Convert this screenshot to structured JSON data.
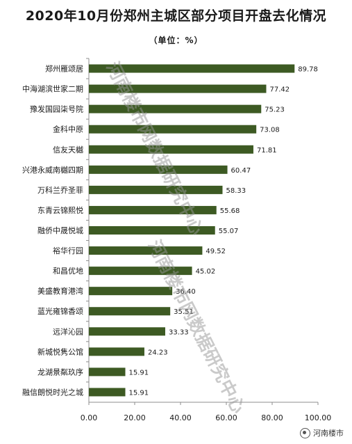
{
  "chart_data": {
    "type": "bar",
    "orientation": "horizontal",
    "title": "2020年10月份郑州主城区部分项目开盘去化情况",
    "subtitle": "（单位：%）",
    "categories": [
      "郑州雁颂居",
      "中海湖滨世家二期",
      "豫发国园柒号院",
      "金科中原",
      "信友天樾",
      "兴港永威南樾四期",
      "万科兰乔圣菲",
      "东青云锦熙悦",
      "融侨中晟悦城",
      "裕华行园",
      "和昌优地",
      "美盛教育港湾",
      "蓝光雍锦香颂",
      "远洋沁园",
      "新城悦隽公馆",
      "龙湖景粼玖序",
      "融信朗悦时光之城"
    ],
    "values": [
      89.78,
      77.42,
      75.23,
      73.08,
      71.81,
      60.47,
      58.33,
      55.68,
      55.07,
      49.52,
      45.02,
      36.4,
      35.51,
      33.33,
      24.23,
      15.91,
      15.91
    ],
    "value_labels": [
      "89.78",
      "77.42",
      "75.23",
      "73.08",
      "71.81",
      "60.47",
      "58.33",
      "55.68",
      "55.07",
      "49.52",
      "45.02",
      "36.40",
      "35.51",
      "33.33",
      "24.23",
      "15.91",
      "15.91"
    ],
    "xlim": [
      0,
      100
    ],
    "x_ticks": [
      "0.00",
      "20.00",
      "40.00",
      "60.00",
      "80.00",
      "100.00"
    ],
    "gridlines": false,
    "bar_color": "#3d5a23"
  },
  "watermark_text": "河南楼市网数据研究中心",
  "brand_label": "河南楼市"
}
